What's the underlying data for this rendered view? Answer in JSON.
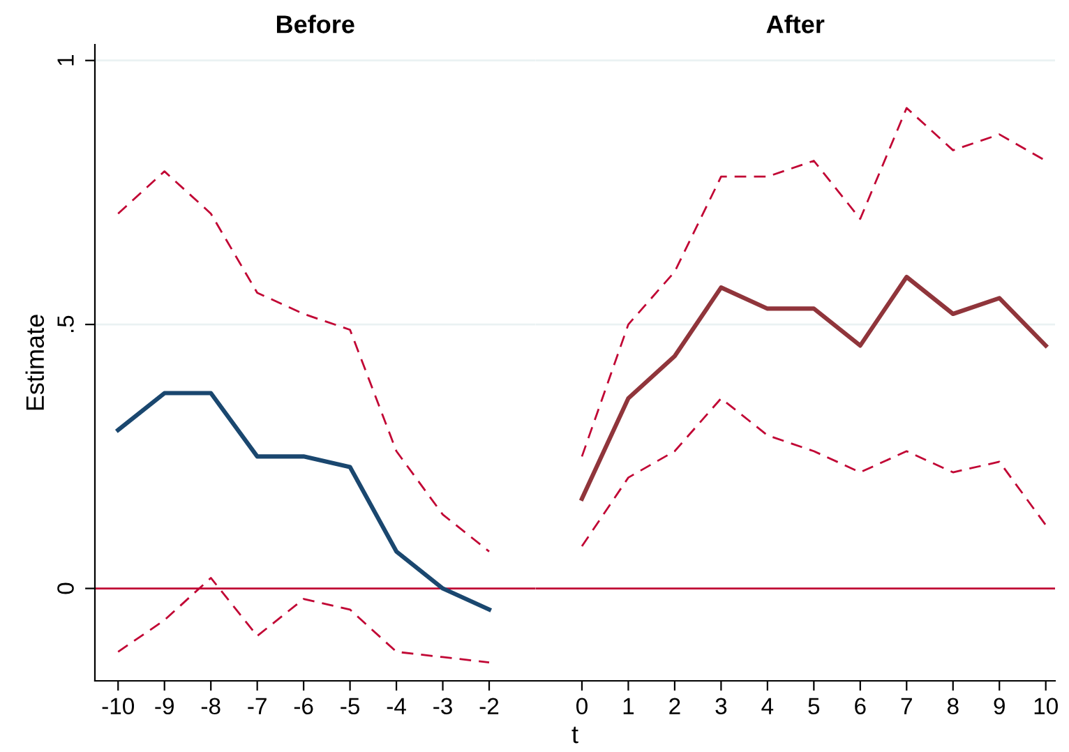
{
  "chart_data": [
    {
      "type": "line",
      "title": "Before",
      "ylabel": "Estimate",
      "x": [
        -10,
        -9,
        -8,
        -7,
        -6,
        -5,
        -4,
        -3,
        -2
      ],
      "series": [
        {
          "color": "#c10534",
          "line_style": "dashed",
          "values": [
            0.71,
            0.79,
            0.71,
            0.56,
            0.52,
            0.49,
            0.26,
            0.14,
            0.07
          ]
        },
        {
          "color": "#c10534",
          "line_style": "dashed",
          "values": [
            -0.12,
            -0.06,
            0.02,
            -0.09,
            -0.02,
            -0.04,
            -0.12,
            -0.13,
            -0.14
          ]
        },
        {
          "color": "#1a476f",
          "line_style": "solid",
          "values": [
            0.3,
            0.37,
            0.37,
            0.25,
            0.25,
            0.23,
            0.07,
            0.0,
            -0.04
          ]
        }
      ],
      "xlim": [
        -10.5,
        -1
      ],
      "xticks": [
        -10,
        -9,
        -8,
        -7,
        -6,
        -5,
        -4,
        -3,
        -2
      ],
      "ylim": [
        -0.175,
        1.03
      ],
      "yticks": [
        {
          "value": 0,
          "label": "0"
        },
        {
          "value": 0.5,
          "label": ".5"
        },
        {
          "value": 1,
          "label": "1"
        }
      ],
      "ref_lines": [
        {
          "axis": "y",
          "value": 0,
          "color": "#c10534"
        }
      ],
      "grid": "y",
      "marker": "none"
    },
    {
      "type": "line",
      "title": "After",
      "xlabel": "t",
      "x": [
        0,
        1,
        2,
        3,
        4,
        5,
        6,
        7,
        8,
        9,
        10
      ],
      "series": [
        {
          "color": "#c10534",
          "line_style": "dashed",
          "values": [
            0.25,
            0.5,
            0.6,
            0.78,
            0.78,
            0.81,
            0.7,
            0.91,
            0.83,
            0.86,
            0.81
          ]
        },
        {
          "color": "#c10534",
          "line_style": "dashed",
          "values": [
            0.08,
            0.21,
            0.26,
            0.36,
            0.29,
            0.26,
            0.22,
            0.26,
            0.22,
            0.24,
            0.12
          ]
        },
        {
          "color": "#90353b",
          "line_style": "solid",
          "values": [
            0.17,
            0.36,
            0.44,
            0.57,
            0.53,
            0.53,
            0.46,
            0.59,
            0.52,
            0.55,
            0.46
          ]
        }
      ],
      "xlim": [
        -1,
        10.2
      ],
      "xticks": [
        0,
        1,
        2,
        3,
        4,
        5,
        6,
        7,
        8,
        9,
        10
      ],
      "ylim": [
        -0.175,
        1.03
      ],
      "yticks": [
        {
          "value": 0,
          "label": null
        },
        {
          "value": 0.5,
          "label": null
        },
        {
          "value": 1,
          "label": null
        }
      ],
      "ref_lines": [
        {
          "axis": "y",
          "value": 0,
          "color": "#c10534"
        }
      ],
      "grid": "y",
      "marker": "none",
      "tick_labels": "x"
    }
  ]
}
